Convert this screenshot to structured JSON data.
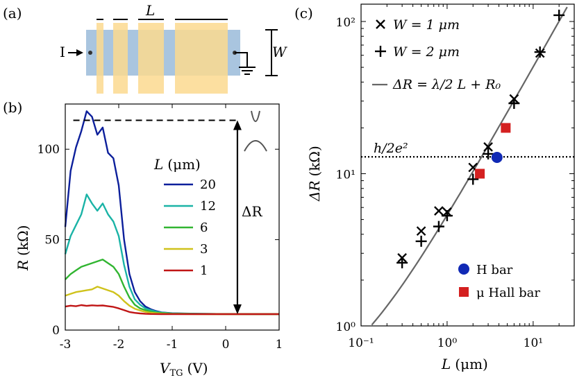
{
  "panel_labels": {
    "a": "(a)",
    "b": "(b)",
    "c": "(c)"
  },
  "schematic": {
    "length_label": "L",
    "width_label": "W",
    "current_label": "I",
    "colors": {
      "channel": "#a9c5df",
      "gate": "#fbd98f"
    }
  },
  "chart_data": [
    {
      "type": "line",
      "panel": "b",
      "xlabel_main": "V",
      "xlabel_sub": "TG",
      "xlabel_unit": "(V)",
      "ylabel_main": "R",
      "ylabel_unit": "(kΩ)",
      "xlim": [
        -3,
        1
      ],
      "ylim": [
        0,
        125
      ],
      "x_ticks": [
        -3,
        -2,
        -1,
        0,
        1
      ],
      "x_tick_labels": [
        "-3",
        "-2",
        "-1",
        "0",
        "1"
      ],
      "y_ticks": [
        0,
        50,
        100
      ],
      "y_tick_labels": [
        "0",
        "50",
        "100"
      ],
      "legend_title_main": "L",
      "legend_title_unit": "(μm)",
      "legend_placement": "center",
      "annotation": "ΔR",
      "dashed_level": 116,
      "baseline_level": 8.8,
      "series": [
        {
          "name": "20",
          "color": "#0c1f9b",
          "x": [
            -3.0,
            -2.9,
            -2.8,
            -2.7,
            -2.6,
            -2.5,
            -2.4,
            -2.3,
            -2.2,
            -2.1,
            -2.0,
            -1.9,
            -1.8,
            -1.7,
            -1.6,
            -1.5,
            -1.4,
            -1.3,
            -1.2,
            -1.0,
            -0.5,
            0.0,
            0.5,
            1.0
          ],
          "y": [
            57,
            88,
            101,
            110,
            121,
            118,
            108,
            112,
            98,
            95,
            80,
            50,
            31,
            21,
            16,
            13,
            11.5,
            10.5,
            9.8,
            9.3,
            9.0,
            8.9,
            8.8,
            8.8
          ]
        },
        {
          "name": "12",
          "color": "#1ab3a6",
          "x": [
            -3.0,
            -2.9,
            -2.8,
            -2.7,
            -2.6,
            -2.5,
            -2.4,
            -2.3,
            -2.2,
            -2.1,
            -2.0,
            -1.9,
            -1.8,
            -1.7,
            -1.6,
            -1.5,
            -1.4,
            -1.3,
            -1.2,
            -1.0,
            -0.5,
            0.0,
            0.5,
            1.0
          ],
          "y": [
            42,
            52,
            58,
            64,
            75,
            70,
            66,
            70,
            64,
            60,
            52,
            36,
            24,
            17,
            14,
            12,
            11,
            10.2,
            9.7,
            9.2,
            9.0,
            8.9,
            8.8,
            8.8
          ]
        },
        {
          "name": "6",
          "color": "#31b531",
          "x": [
            -3.0,
            -2.9,
            -2.8,
            -2.7,
            -2.6,
            -2.5,
            -2.4,
            -2.3,
            -2.2,
            -2.1,
            -2.0,
            -1.9,
            -1.8,
            -1.7,
            -1.6,
            -1.5,
            -1.4,
            -1.3,
            -1.2,
            -1.0,
            -0.5,
            0.0,
            0.5,
            1.0
          ],
          "y": [
            28,
            31,
            33,
            35,
            36,
            37,
            38,
            39,
            37,
            35,
            31,
            24,
            18,
            14,
            12,
            11,
            10.2,
            9.7,
            9.4,
            9.1,
            8.9,
            8.8,
            8.8,
            8.8
          ]
        },
        {
          "name": "3",
          "color": "#cfc21b",
          "x": [
            -3.0,
            -2.9,
            -2.8,
            -2.7,
            -2.6,
            -2.5,
            -2.4,
            -2.3,
            -2.2,
            -2.1,
            -2.0,
            -1.9,
            -1.8,
            -1.7,
            -1.6,
            -1.5,
            -1.4,
            -1.3,
            -1.2,
            -1.0,
            -0.5,
            0.0,
            0.5,
            1.0
          ],
          "y": [
            19,
            20,
            21,
            21.5,
            22,
            22.5,
            24,
            23,
            22,
            21,
            19,
            16,
            13.5,
            11.8,
            10.8,
            10.1,
            9.6,
            9.3,
            9.1,
            8.9,
            8.8,
            8.8,
            8.8,
            8.8
          ]
        },
        {
          "name": "1",
          "color": "#c01515",
          "x": [
            -3.0,
            -2.9,
            -2.8,
            -2.7,
            -2.6,
            -2.5,
            -2.4,
            -2.3,
            -2.2,
            -2.1,
            -2.0,
            -1.9,
            -1.8,
            -1.7,
            -1.6,
            -1.5,
            -1.4,
            -1.3,
            -1.2,
            -1.0,
            -0.5,
            0.0,
            0.5,
            1.0
          ],
          "y": [
            13,
            13.5,
            13.2,
            13.8,
            13.4,
            13.7,
            13.5,
            13.6,
            13.2,
            12.8,
            12,
            11,
            10,
            9.5,
            9.2,
            9.0,
            8.9,
            8.85,
            8.8,
            8.8,
            8.8,
            8.8,
            8.8,
            8.8
          ]
        }
      ]
    },
    {
      "type": "scatter",
      "panel": "c",
      "xscale": "log",
      "yscale": "log",
      "xlabel_main": "L",
      "xlabel_unit": "(μm)",
      "ylabel_main": "ΔR",
      "ylabel_unit": "(kΩ)",
      "xlim": [
        0.1,
        30
      ],
      "ylim": [
        1,
        130
      ],
      "x_ticks": [
        0.1,
        1,
        10
      ],
      "x_tick_labels": [
        "10⁻¹",
        "10⁰",
        "10¹"
      ],
      "y_ticks": [
        1,
        10,
        100
      ],
      "y_tick_labels": [
        "10⁰",
        "10¹",
        "10²"
      ],
      "legend_placement": "top-left",
      "hline_value": 12.9,
      "hline_label": "h/2e²",
      "fit_line": {
        "name": "ΔR = λ/2 L + R₀",
        "slope_per_um": 5.0,
        "intercept": 0.35
      },
      "series": [
        {
          "name": "W = 1 μm",
          "marker": "x",
          "color": "#000000",
          "x": [
            0.3,
            0.5,
            0.8,
            1.0,
            2.0,
            3.0,
            6.0,
            12.0
          ],
          "y": [
            2.8,
            4.2,
            5.7,
            5.6,
            11,
            15,
            31,
            62
          ]
        },
        {
          "name": "W = 2 μm",
          "marker": "+",
          "color": "#000000",
          "x": [
            0.3,
            0.5,
            0.8,
            1.0,
            2.0,
            3.0,
            6.0,
            12.0,
            20.0
          ],
          "y": [
            2.6,
            3.6,
            4.5,
            5.3,
            9.2,
            13.5,
            29,
            63,
            110
          ]
        },
        {
          "name": "H bar",
          "marker": "circle",
          "color": "#1029b5",
          "x": [
            3.8
          ],
          "y": [
            12.8
          ]
        },
        {
          "name": "μ Hall bar",
          "marker": "square",
          "color": "#d42020",
          "x": [
            2.4,
            4.8
          ],
          "y": [
            10.0,
            20.0
          ]
        }
      ]
    }
  ]
}
